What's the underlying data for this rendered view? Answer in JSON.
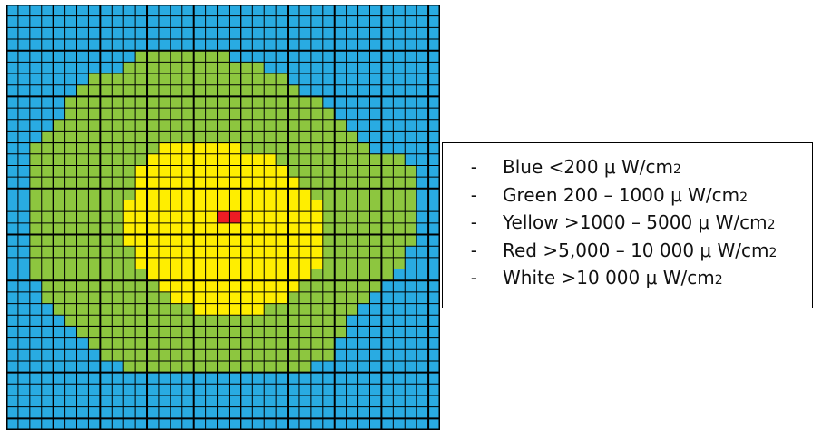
{
  "colors": {
    "blue": "#29abe2",
    "green": "#8dc63f",
    "yellow": "#ffee00",
    "red": "#ed1c24",
    "grid_line": "#000000"
  },
  "grid": {
    "rows": 37,
    "cols": 37,
    "zones": {
      "green": [
        [
          4,
          11,
          18
        ],
        [
          5,
          10,
          21
        ],
        [
          6,
          7,
          23
        ],
        [
          7,
          6,
          24
        ],
        [
          8,
          5,
          26
        ],
        [
          9,
          5,
          27
        ],
        [
          10,
          4,
          28
        ],
        [
          11,
          3,
          29
        ],
        [
          12,
          2,
          30
        ],
        [
          13,
          2,
          33
        ],
        [
          14,
          2,
          34
        ],
        [
          15,
          2,
          34
        ],
        [
          16,
          2,
          34
        ],
        [
          17,
          2,
          34
        ],
        [
          18,
          2,
          34
        ],
        [
          19,
          2,
          34
        ],
        [
          20,
          2,
          34
        ],
        [
          21,
          2,
          33
        ],
        [
          22,
          2,
          33
        ],
        [
          23,
          2,
          32
        ],
        [
          24,
          3,
          31
        ],
        [
          25,
          3,
          30
        ],
        [
          26,
          4,
          29
        ],
        [
          27,
          5,
          28
        ],
        [
          28,
          6,
          28
        ],
        [
          29,
          7,
          27
        ],
        [
          30,
          8,
          27
        ],
        [
          31,
          10,
          25
        ]
      ],
      "yellow": [
        [
          12,
          13,
          19
        ],
        [
          13,
          12,
          22
        ],
        [
          14,
          11,
          23
        ],
        [
          15,
          11,
          24
        ],
        [
          16,
          11,
          25
        ],
        [
          17,
          10,
          26
        ],
        [
          18,
          10,
          26
        ],
        [
          19,
          10,
          26
        ],
        [
          20,
          10,
          26
        ],
        [
          21,
          11,
          26
        ],
        [
          22,
          11,
          26
        ],
        [
          23,
          12,
          25
        ],
        [
          24,
          13,
          24
        ],
        [
          25,
          14,
          23
        ],
        [
          26,
          16,
          21
        ]
      ],
      "red": [
        [
          18,
          18,
          19
        ]
      ]
    }
  },
  "legend": [
    {
      "dash": "-",
      "label": "Blue <200 μ W/cm",
      "sup": "2"
    },
    {
      "dash": "-",
      "label": "Green 200 – 1000 μ W/cm",
      "sup": "2"
    },
    {
      "dash": "-",
      "label": "Yellow >1000 – 5000 μ W/cm",
      "sup": "2"
    },
    {
      "dash": "-",
      "label": "Red >5,000 – 10 000 μ W/cm",
      "sup": "2"
    },
    {
      "dash": "-",
      "label": "White >10 000 μ W/cm",
      "sup": "2"
    }
  ]
}
